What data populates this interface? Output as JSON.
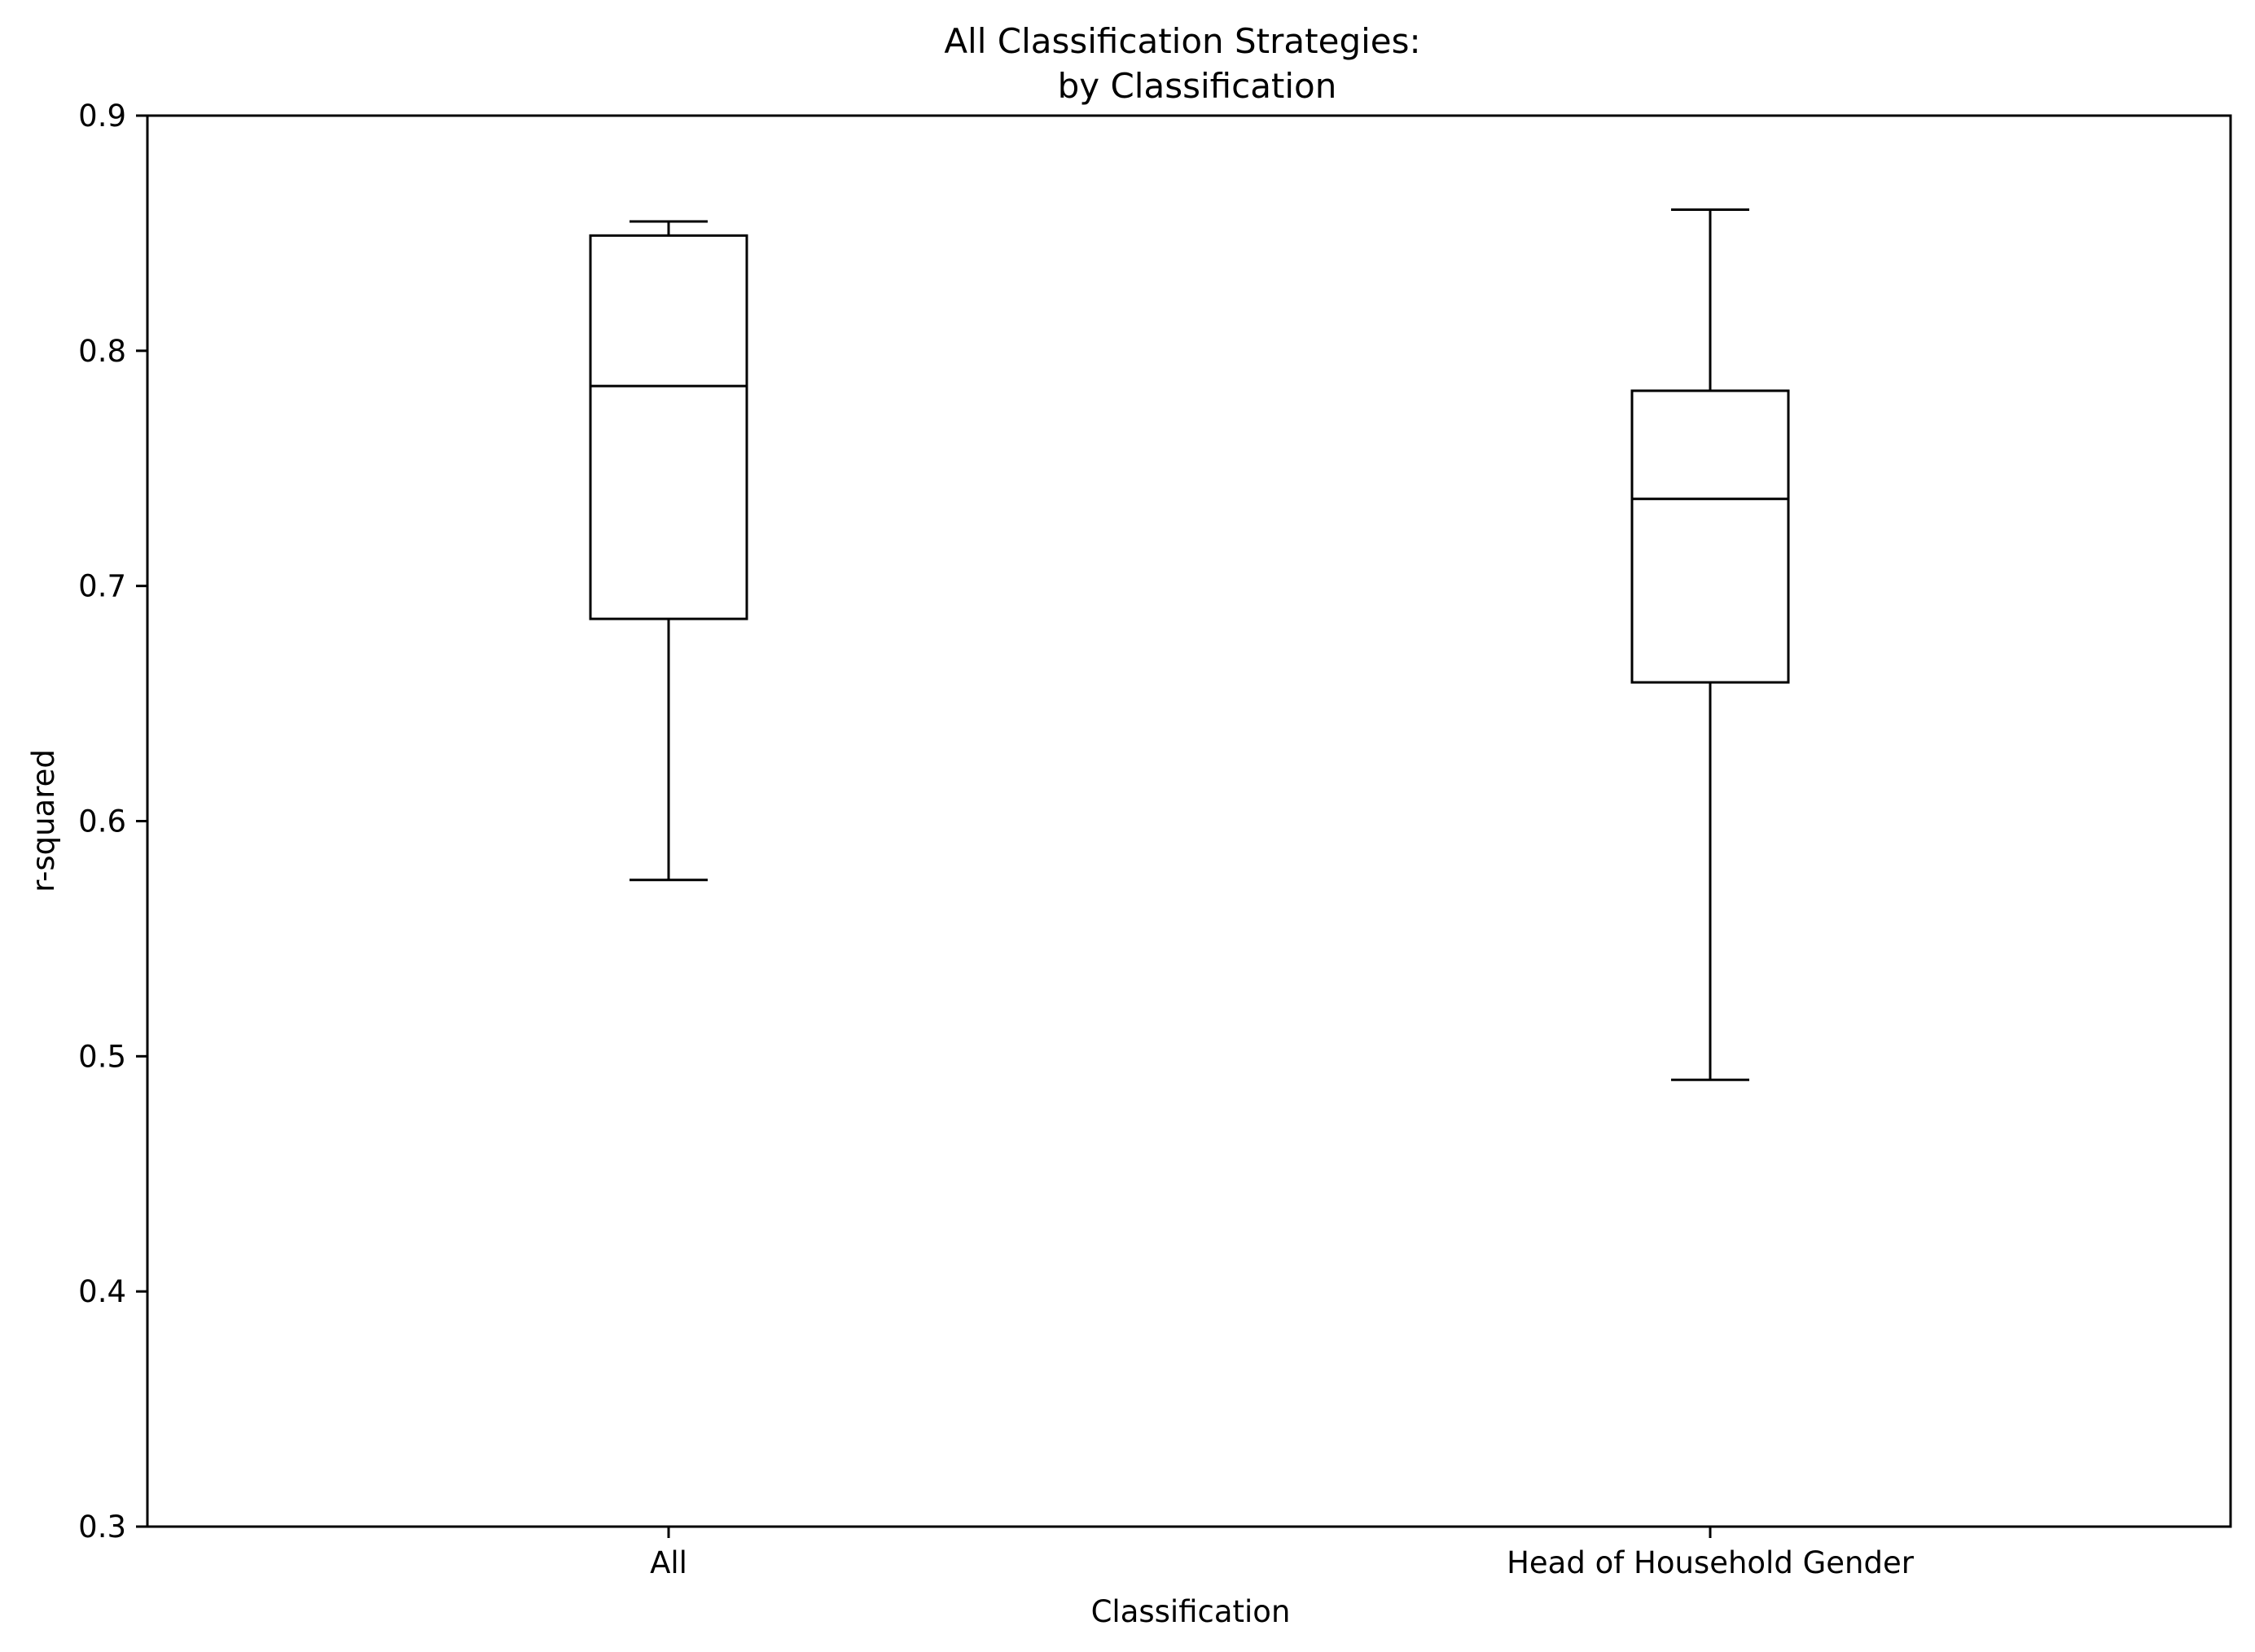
{
  "chart_data": {
    "type": "box",
    "title": "All Classification Strategies:",
    "subtitle": "by Classification",
    "xlabel": "Classification",
    "ylabel": "r-squared",
    "ylim": [
      0.3,
      0.9
    ],
    "yticks": [
      "0.3",
      "0.4",
      "0.5",
      "0.6",
      "0.7",
      "0.8",
      "0.9"
    ],
    "grid": false,
    "legend": "none",
    "categories": [
      "All",
      "Head of Household Gender"
    ],
    "boxes": [
      {
        "category": "All",
        "whisker_low": 0.575,
        "q1": 0.686,
        "median": 0.785,
        "q3": 0.849,
        "whisker_high": 0.855
      },
      {
        "category": "Head of Household Gender",
        "whisker_low": 0.49,
        "q1": 0.659,
        "median": 0.737,
        "q3": 0.783,
        "whisker_high": 0.86
      }
    ],
    "colors": {
      "line": "#000000",
      "background": "#ffffff"
    }
  }
}
